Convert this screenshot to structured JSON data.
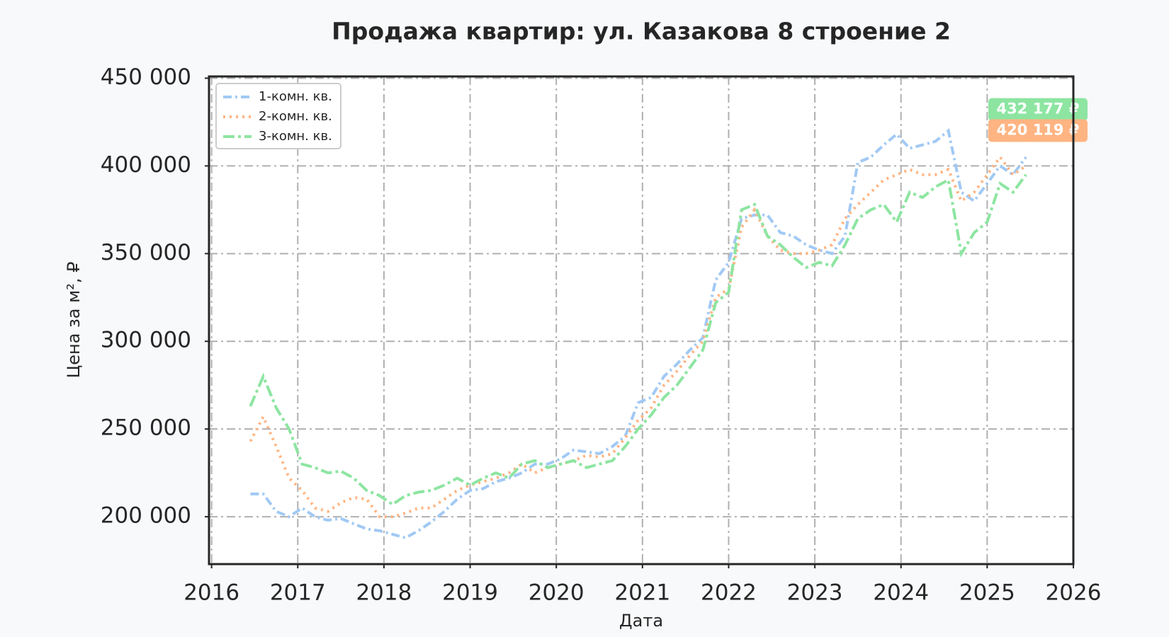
{
  "chart_data": {
    "type": "line",
    "title": "Продажа квартир: ул. Казакова 8 строение 2",
    "x_label": "Дата",
    "y_label": "Цена за м², ₽",
    "x": [
      2016.45,
      2016.6,
      2016.75,
      2016.9,
      2017.05,
      2017.2,
      2017.35,
      2017.5,
      2017.65,
      2017.8,
      2017.95,
      2018.1,
      2018.25,
      2018.4,
      2018.55,
      2018.7,
      2018.85,
      2019.0,
      2019.15,
      2019.3,
      2019.45,
      2019.6,
      2019.75,
      2019.9,
      2020.05,
      2020.2,
      2020.35,
      2020.5,
      2020.65,
      2020.8,
      2020.95,
      2021.1,
      2021.25,
      2021.4,
      2021.55,
      2021.7,
      2021.85,
      2022.0,
      2022.15,
      2022.3,
      2022.45,
      2022.6,
      2022.75,
      2022.9,
      2023.05,
      2023.2,
      2023.35,
      2023.5,
      2023.65,
      2023.8,
      2023.95,
      2024.1,
      2024.25,
      2024.4,
      2024.55,
      2024.7,
      2024.85,
      2025.0,
      2025.15,
      2025.3,
      2025.45
    ],
    "series": [
      {
        "name": "1-комн. кв.",
        "color": "#a1c9f4",
        "linestyle": "dashdot",
        "values": [
          213000,
          213000,
          203000,
          200000,
          205000,
          200000,
          198000,
          199000,
          196000,
          193000,
          192000,
          190000,
          188000,
          192000,
          197000,
          203000,
          210000,
          215000,
          216000,
          220000,
          222000,
          225000,
          230000,
          230000,
          233000,
          238000,
          237000,
          236000,
          240000,
          246000,
          265000,
          268000,
          280000,
          287000,
          295000,
          302000,
          335000,
          345000,
          370000,
          372000,
          372000,
          362000,
          360000,
          355000,
          352000,
          350000,
          360000,
          402000,
          405000,
          412000,
          418000,
          410000,
          412000,
          414000,
          420000,
          385000,
          380000,
          390000,
          400000,
          395000,
          405000
        ]
      },
      {
        "name": "2-комн. кв.",
        "color": "#ffb482",
        "linestyle": "dotted",
        "values": [
          243000,
          257000,
          240000,
          222000,
          215000,
          205000,
          203000,
          208000,
          211000,
          210000,
          200000,
          200000,
          202000,
          205000,
          205000,
          210000,
          215000,
          218000,
          220000,
          222000,
          225000,
          230000,
          225000,
          228000,
          230000,
          232000,
          235000,
          234000,
          236000,
          245000,
          255000,
          262000,
          275000,
          283000,
          292000,
          300000,
          325000,
          330000,
          365000,
          375000,
          360000,
          352000,
          350000,
          350000,
          352000,
          355000,
          370000,
          378000,
          385000,
          392000,
          395000,
          398000,
          395000,
          395000,
          398000,
          380000,
          385000,
          395000,
          405000,
          395000,
          400000
        ]
      },
      {
        "name": "3-комн. кв.",
        "color": "#8de5a1",
        "linestyle": "dashed",
        "values": [
          263000,
          280000,
          262000,
          250000,
          230000,
          228000,
          225000,
          226000,
          222000,
          215000,
          212000,
          207000,
          212000,
          214000,
          215000,
          218000,
          222000,
          218000,
          222000,
          225000,
          222000,
          230000,
          232000,
          228000,
          230000,
          232000,
          228000,
          230000,
          232000,
          240000,
          250000,
          258000,
          268000,
          275000,
          285000,
          295000,
          322000,
          328000,
          375000,
          378000,
          360000,
          355000,
          348000,
          342000,
          345000,
          343000,
          355000,
          370000,
          375000,
          378000,
          368000,
          385000,
          382000,
          388000,
          392000,
          350000,
          362000,
          368000,
          390000,
          385000,
          395000
        ]
      }
    ],
    "xlim": [
      2015.97,
      2026
    ],
    "xticks": [
      2016,
      2017,
      2018,
      2019,
      2020,
      2021,
      2022,
      2023,
      2024,
      2025,
      2026
    ],
    "ylim": [
      173000,
      451000
    ],
    "yticks": [
      {
        "value": 200000,
        "label": "200 000"
      },
      {
        "value": 250000,
        "label": "250 000"
      },
      {
        "value": 300000,
        "label": "300 000"
      },
      {
        "value": 350000,
        "label": "350 000"
      },
      {
        "value": 400000,
        "label": "400 000"
      },
      {
        "value": 450000,
        "label": "450 000"
      }
    ],
    "grid": true,
    "legend": "upper-left",
    "annotations": [
      {
        "text": "432 177 ₽",
        "value": 432177,
        "color": "#8de5a1"
      },
      {
        "text": "420 119 ₽",
        "value": 420119,
        "color": "#ffb482"
      }
    ]
  }
}
